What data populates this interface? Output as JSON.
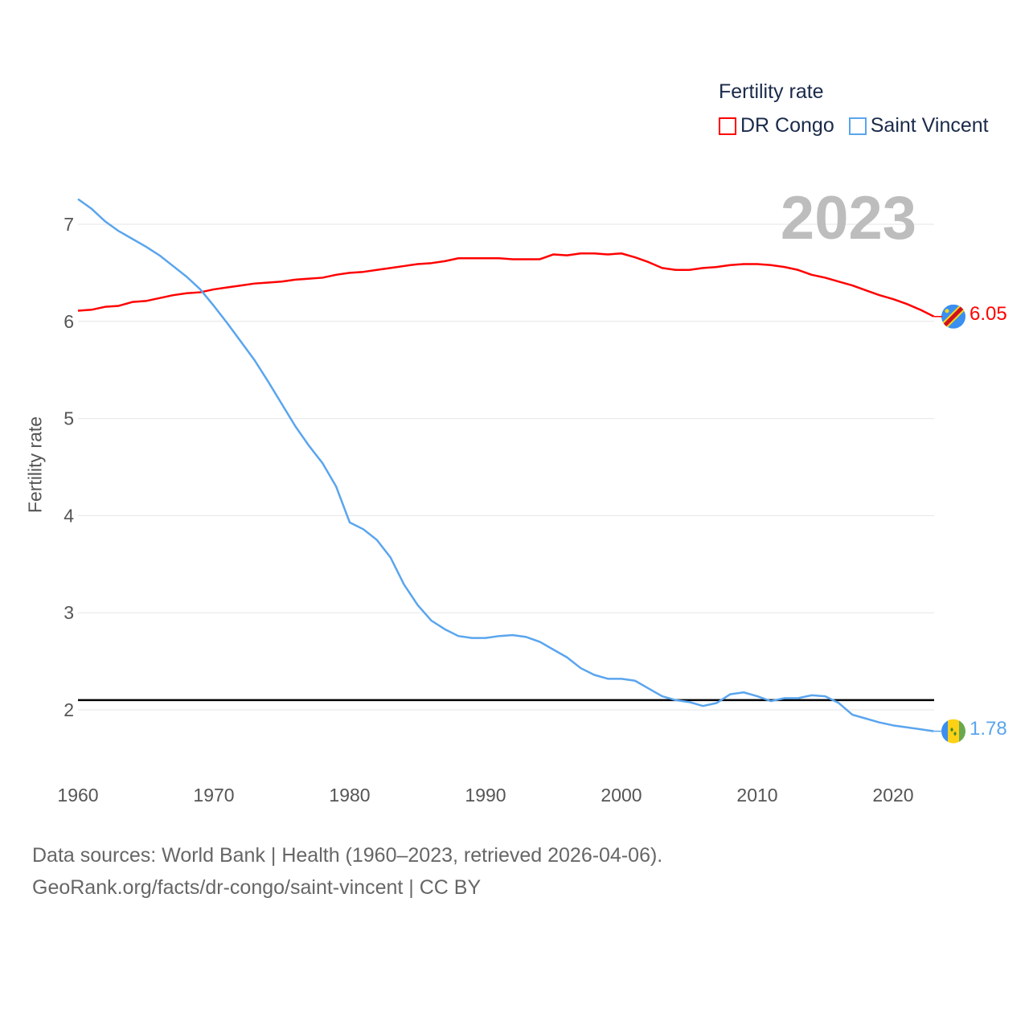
{
  "legend": {
    "title": "Fertility rate"
  },
  "year_label": "2023",
  "footer": {
    "line1": "Data sources: World Bank | Health (1960–2023, retrieved 2026-04-06).",
    "line2": "GeoRank.org/facts/dr-congo/saint-vincent | CC BY"
  },
  "end_labels": {
    "dr_congo": "6.05",
    "saint_vincent": "1.78"
  },
  "chart_data": {
    "type": "line",
    "title": "",
    "xlabel": "",
    "ylabel": "Fertility rate",
    "xlim": [
      1960,
      2023
    ],
    "ylim": [
      1.4,
      7.4
    ],
    "grid": true,
    "legend_position": "top-right",
    "x_ticks": [
      "1960",
      "1970",
      "1980",
      "1990",
      "2000",
      "2010",
      "2020"
    ],
    "y_ticks": [
      "2",
      "3",
      "4",
      "5",
      "6",
      "7"
    ],
    "reference_line": 2.1,
    "x": [
      1960,
      1961,
      1962,
      1963,
      1964,
      1965,
      1966,
      1967,
      1968,
      1969,
      1970,
      1971,
      1972,
      1973,
      1974,
      1975,
      1976,
      1977,
      1978,
      1979,
      1980,
      1981,
      1982,
      1983,
      1984,
      1985,
      1986,
      1987,
      1988,
      1989,
      1990,
      1991,
      1992,
      1993,
      1994,
      1995,
      1996,
      1997,
      1998,
      1999,
      2000,
      2001,
      2002,
      2003,
      2004,
      2005,
      2006,
      2007,
      2008,
      2009,
      2010,
      2011,
      2012,
      2013,
      2014,
      2015,
      2016,
      2017,
      2018,
      2019,
      2020,
      2021,
      2022,
      2023
    ],
    "series": [
      {
        "name": "DR Congo",
        "color": "#ff0000",
        "values": [
          6.11,
          6.12,
          6.15,
          6.16,
          6.2,
          6.21,
          6.24,
          6.27,
          6.29,
          6.3,
          6.33,
          6.35,
          6.37,
          6.39,
          6.4,
          6.41,
          6.43,
          6.44,
          6.45,
          6.48,
          6.5,
          6.51,
          6.53,
          6.55,
          6.57,
          6.59,
          6.6,
          6.62,
          6.65,
          6.65,
          6.65,
          6.65,
          6.64,
          6.64,
          6.64,
          6.69,
          6.68,
          6.7,
          6.7,
          6.69,
          6.7,
          6.66,
          6.61,
          6.55,
          6.53,
          6.53,
          6.55,
          6.56,
          6.58,
          6.59,
          6.59,
          6.58,
          6.56,
          6.53,
          6.48,
          6.45,
          6.41,
          6.37,
          6.32,
          6.27,
          6.23,
          6.18,
          6.12,
          6.05
        ]
      },
      {
        "name": "Saint Vincent",
        "color": "#5aa5ee",
        "values": [
          7.26,
          7.16,
          7.03,
          6.93,
          6.85,
          6.77,
          6.68,
          6.57,
          6.46,
          6.33,
          6.16,
          5.98,
          5.79,
          5.6,
          5.38,
          5.15,
          4.92,
          4.72,
          4.54,
          4.3,
          3.93,
          3.86,
          3.75,
          3.57,
          3.29,
          3.08,
          2.92,
          2.83,
          2.76,
          2.74,
          2.74,
          2.76,
          2.77,
          2.75,
          2.7,
          2.62,
          2.54,
          2.43,
          2.36,
          2.32,
          2.32,
          2.3,
          2.22,
          2.14,
          2.1,
          2.08,
          2.04,
          2.07,
          2.16,
          2.18,
          2.14,
          2.09,
          2.12,
          2.12,
          2.15,
          2.14,
          2.07,
          1.95,
          1.91,
          1.87,
          1.84,
          1.82,
          1.8,
          1.78
        ]
      }
    ]
  }
}
